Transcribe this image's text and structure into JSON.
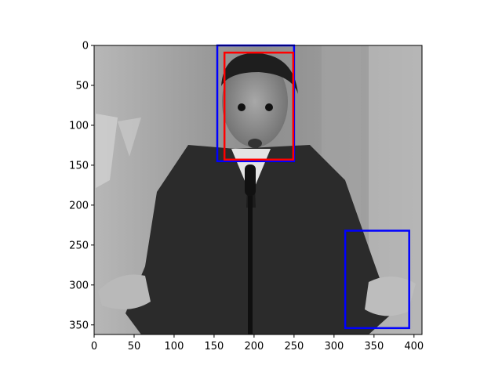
{
  "chart_data": {
    "type": "image",
    "title": "",
    "xlabel": "",
    "ylabel": "",
    "xlim": [
      0,
      410
    ],
    "ylim": [
      362,
      0
    ],
    "xticks": [
      0,
      50,
      100,
      150,
      200,
      250,
      300,
      350,
      400
    ],
    "yticks": [
      0,
      50,
      100,
      150,
      200,
      250,
      300,
      350
    ],
    "image_description": "grayscale photo of a man in a dark coat at a microphone with hands outstretched",
    "boxes": [
      {
        "color": "#0000ff",
        "x0": 154,
        "y0": 0,
        "x1": 250,
        "y1": 145
      },
      {
        "color": "#ff0000",
        "x0": 163,
        "y0": 9,
        "x1": 249,
        "y1": 143
      },
      {
        "color": "#0000ff",
        "x0": 314,
        "y0": 232,
        "x1": 394,
        "y1": 354
      }
    ]
  }
}
